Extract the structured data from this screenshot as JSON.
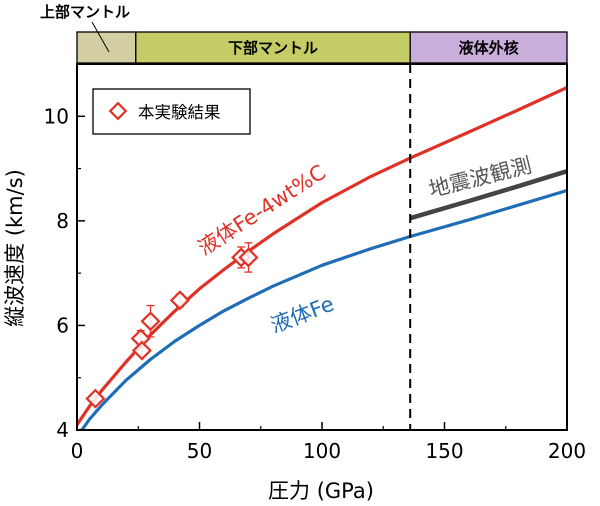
{
  "chart_data": {
    "type": "line",
    "xlabel": "圧力 (GPa)",
    "ylabel": "縦波速度 (km/s)",
    "xlim": [
      0,
      200
    ],
    "ylim": [
      4,
      11
    ],
    "x_ticks": [
      "0",
      "50",
      "100",
      "150",
      "200"
    ],
    "y_ticks": [
      "4",
      "6",
      "8",
      "10"
    ],
    "grid": false,
    "legend": {
      "position": "top-left",
      "label": "本実験結果"
    },
    "regions": [
      {
        "name": "上部マントル",
        "x_range": [
          0,
          24
        ],
        "color": "#d4cfa3"
      },
      {
        "name": "下部マントル",
        "x_range": [
          24,
          136
        ],
        "color": "#c3cc65"
      },
      {
        "name": "液体外核",
        "x_range": [
          136,
          200
        ],
        "color": "#c9addb"
      }
    ],
    "boundary_x": 136,
    "series": [
      {
        "name": "液体Fe-4wt%C",
        "color": "#e03127",
        "x": [
          0,
          5,
          10,
          20,
          30,
          40,
          50,
          60,
          70,
          80,
          100,
          120,
          136,
          160,
          180,
          200
        ],
        "y": [
          4.1,
          4.45,
          4.75,
          5.3,
          5.82,
          6.28,
          6.7,
          7.07,
          7.42,
          7.75,
          8.35,
          8.85,
          9.2,
          9.7,
          10.12,
          10.55
        ]
      },
      {
        "name": "液体Fe",
        "color": "#1f6db5",
        "x": [
          2,
          5,
          10,
          20,
          30,
          40,
          50,
          60,
          70,
          80,
          100,
          120,
          136,
          160,
          180,
          200
        ],
        "y": [
          4.0,
          4.2,
          4.47,
          4.95,
          5.35,
          5.7,
          6.0,
          6.28,
          6.52,
          6.75,
          7.15,
          7.47,
          7.7,
          8.02,
          8.3,
          8.58
        ]
      },
      {
        "name": "地震波観測",
        "color": "#444444",
        "x": [
          136,
          160,
          180,
          200
        ],
        "y": [
          8.05,
          8.38,
          8.66,
          8.95
        ]
      }
    ],
    "experimental": {
      "label": "本実験結果",
      "color": "#e03127",
      "points": [
        {
          "x": 7.5,
          "y": 4.6,
          "err": 0.05
        },
        {
          "x": 26,
          "y": 5.75,
          "err": 0.15
        },
        {
          "x": 26.5,
          "y": 5.52,
          "err": 0.1
        },
        {
          "x": 30,
          "y": 6.08,
          "err": 0.3
        },
        {
          "x": 42,
          "y": 6.48,
          "err": 0.12
        },
        {
          "x": 67,
          "y": 7.3,
          "err": 0.2
        },
        {
          "x": 70,
          "y": 7.3,
          "err": 0.28
        }
      ]
    }
  }
}
